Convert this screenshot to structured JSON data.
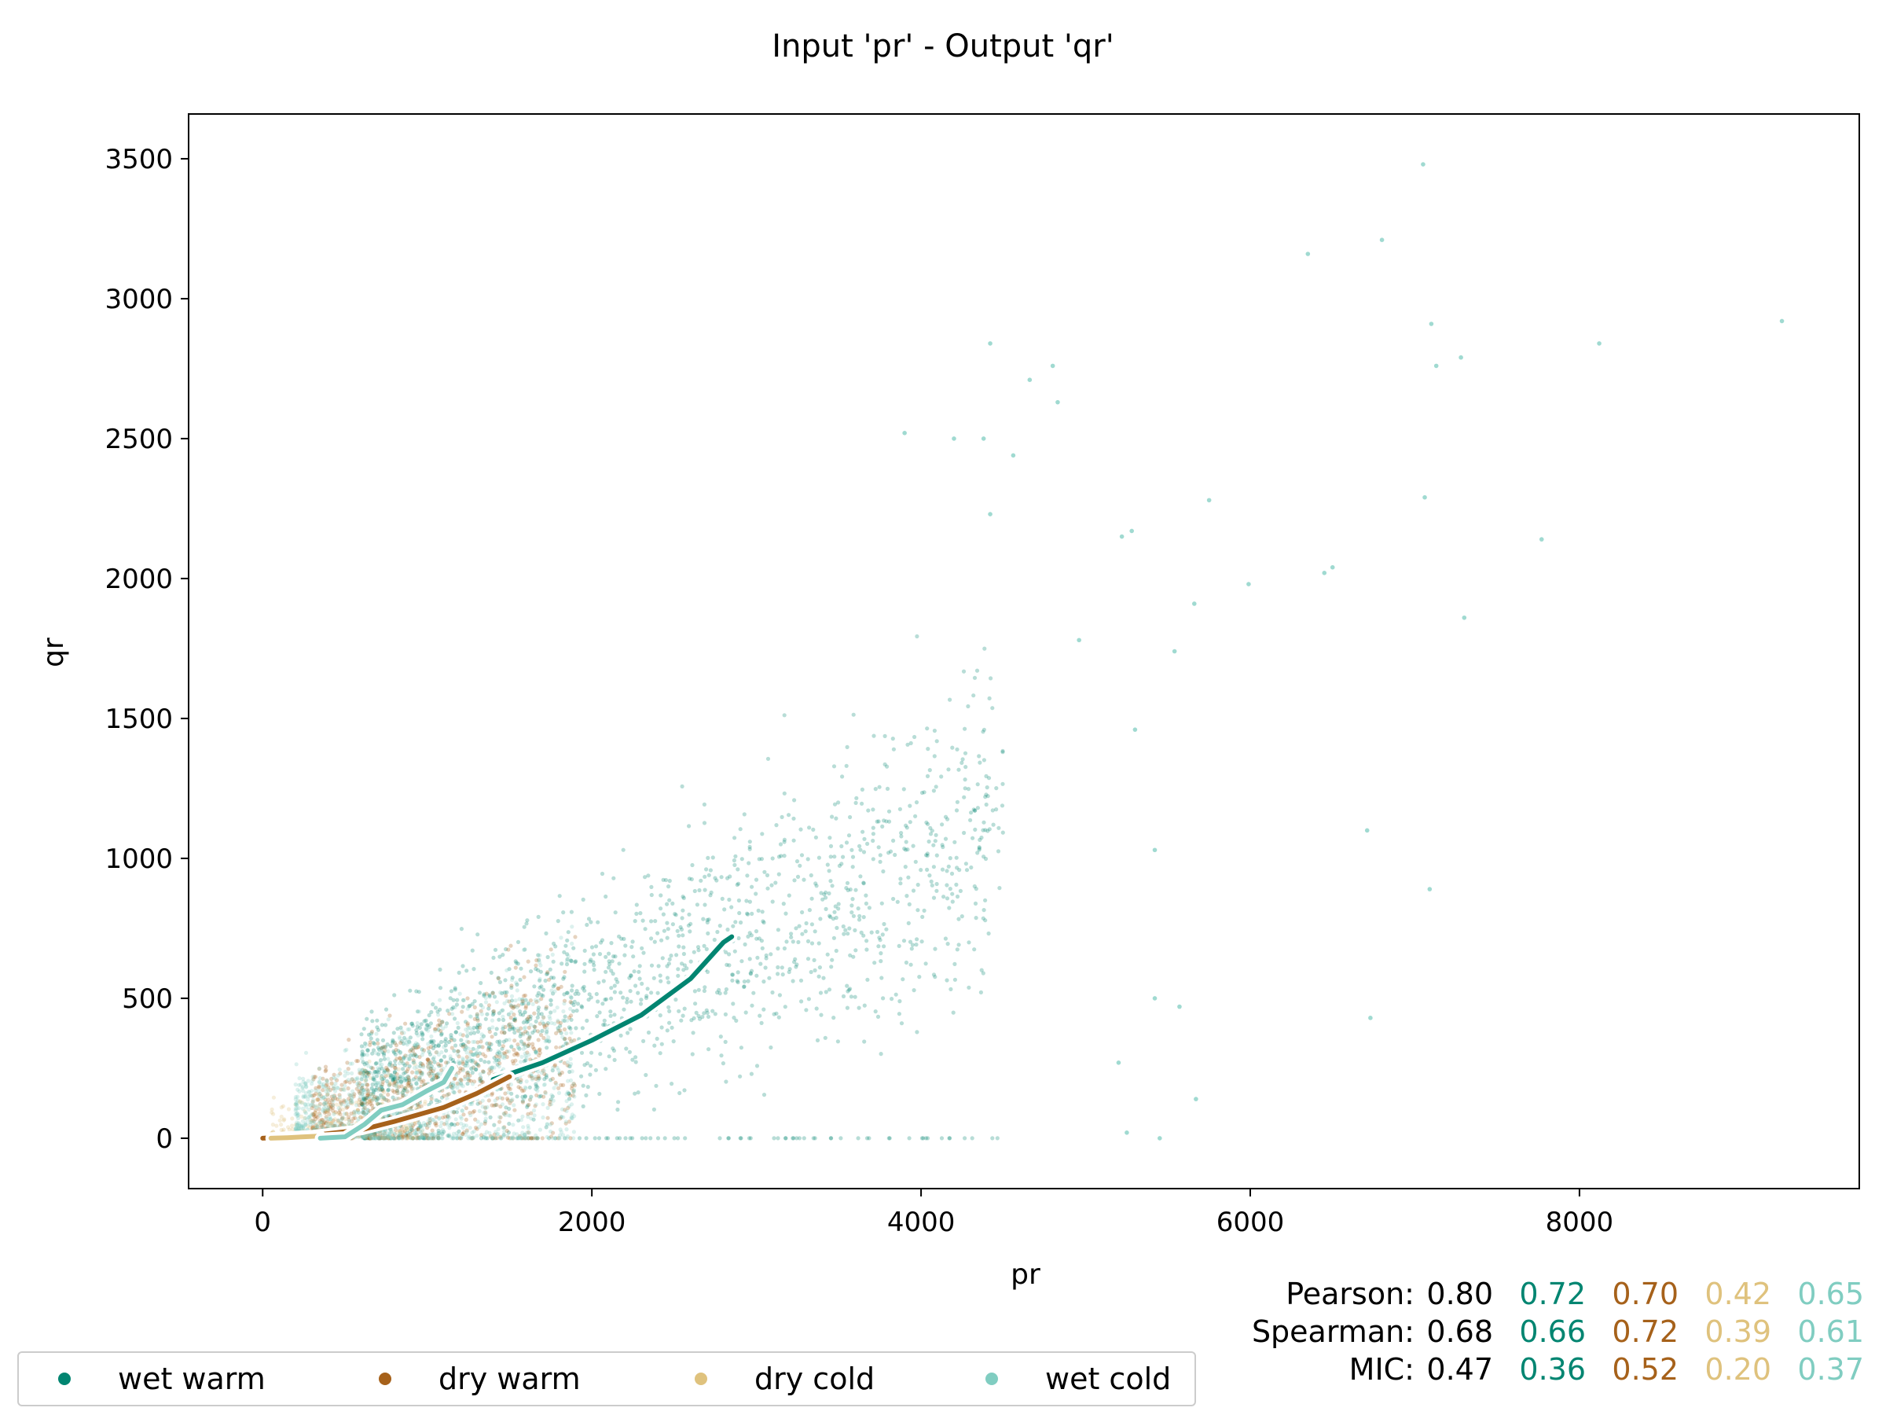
{
  "chart_data": {
    "type": "scatter",
    "title": "Input 'pr' - Output 'qr'",
    "xlabel": "pr",
    "ylabel": "qr",
    "xlim": [
      -450,
      9700
    ],
    "ylim": [
      -180,
      3660
    ],
    "xticks": [
      0,
      2000,
      4000,
      6000,
      8000
    ],
    "yticks": [
      0,
      500,
      1000,
      1500,
      2000,
      2500,
      3000,
      3500
    ],
    "grid": false,
    "series": [
      {
        "name": "wet warm",
        "color": "#018571",
        "cluster": {
          "x_range": [
            600,
            4500
          ],
          "slope": 0.25,
          "spread": 180
        },
        "trend": [
          [
            1400,
            210
          ],
          [
            1700,
            270
          ],
          [
            2000,
            350
          ],
          [
            2300,
            440
          ],
          [
            2600,
            570
          ],
          [
            2800,
            700
          ],
          [
            2850,
            720
          ]
        ]
      },
      {
        "name": "dry warm",
        "color": "#a6611a",
        "cluster": {
          "x_range": [
            300,
            1900
          ],
          "slope": 0.18,
          "spread": 110
        },
        "trend": [
          [
            0,
            0
          ],
          [
            300,
            10
          ],
          [
            600,
            30
          ],
          [
            800,
            60
          ],
          [
            1100,
            110
          ],
          [
            1300,
            160
          ],
          [
            1500,
            220
          ]
        ]
      },
      {
        "name": "dry cold",
        "color": "#dfc27d",
        "cluster": {
          "x_range": [
            50,
            1000
          ],
          "slope": 0.12,
          "spread": 70
        },
        "trend": [
          [
            50,
            0
          ],
          [
            150,
            2
          ],
          [
            250,
            5
          ],
          [
            350,
            8
          ]
        ]
      },
      {
        "name": "wet cold",
        "color": "#80cdc1",
        "cluster": {
          "x_range": [
            200,
            1900
          ],
          "slope": 0.15,
          "spread": 130
        },
        "trend": [
          [
            350,
            0
          ],
          [
            500,
            5
          ],
          [
            620,
            50
          ],
          [
            720,
            100
          ],
          [
            850,
            120
          ],
          [
            1000,
            170
          ],
          [
            1100,
            200
          ],
          [
            1150,
            250
          ]
        ]
      }
    ],
    "outliers": [
      [
        7050,
        3480
      ],
      [
        6800,
        3210
      ],
      [
        6350,
        3160
      ],
      [
        9230,
        2920
      ],
      [
        7100,
        2910
      ],
      [
        8120,
        2840
      ],
      [
        7280,
        2790
      ],
      [
        7130,
        2760
      ],
      [
        4420,
        2840
      ],
      [
        4800,
        2760
      ],
      [
        4660,
        2710
      ],
      [
        4830,
        2630
      ],
      [
        4380,
        2500
      ],
      [
        3900,
        2520
      ],
      [
        4200,
        2500
      ],
      [
        4560,
        2440
      ],
      [
        5750,
        2280
      ],
      [
        7060,
        2290
      ],
      [
        4420,
        2230
      ],
      [
        5220,
        2150
      ],
      [
        5280,
        2170
      ],
      [
        7770,
        2140
      ],
      [
        6450,
        2020
      ],
      [
        6500,
        2040
      ],
      [
        5990,
        1980
      ],
      [
        7300,
        1860
      ],
      [
        5660,
        1910
      ],
      [
        4960,
        1780
      ],
      [
        5540,
        1740
      ],
      [
        5300,
        1460
      ],
      [
        5420,
        1030
      ],
      [
        6710,
        1100
      ],
      [
        7090,
        890
      ],
      [
        5670,
        140
      ],
      [
        6730,
        430
      ],
      [
        5420,
        500
      ],
      [
        5570,
        470
      ],
      [
        5200,
        270
      ],
      [
        5450,
        0
      ],
      [
        5250,
        20
      ]
    ],
    "pearson": [
      "0.80",
      "0.72",
      "0.70",
      "0.42",
      "0.65"
    ],
    "spearman": [
      "0.68",
      "0.66",
      "0.72",
      "0.39",
      "0.61"
    ],
    "mic": [
      "0.47",
      "0.36",
      "0.52",
      "0.20",
      "0.37"
    ],
    "stat_labels": {
      "pearson": "Pearson:",
      "spearman": "Spearman:",
      "mic": "MIC:"
    },
    "stat_colors": [
      "#000000",
      "#018571",
      "#a6611a",
      "#dfc27d",
      "#80cdc1"
    ]
  }
}
